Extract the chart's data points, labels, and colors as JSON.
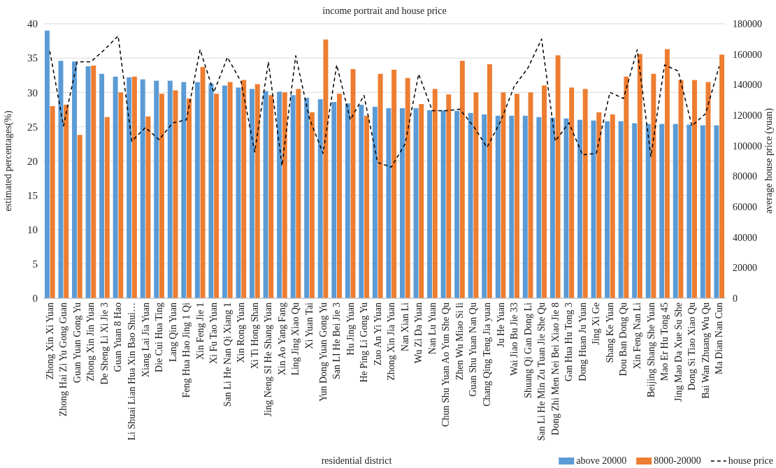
{
  "chart_data": {
    "type": "bar",
    "title": "income portrait and house price",
    "xlabel": "residential district",
    "ylabel": "estimated percentages(%)",
    "y2label": "average house price (yuan)",
    "categories": [
      "Zhong Xin Xi Yuan",
      "Zhong Hai Zi Yu Gong Guan",
      "Guan Yuan Gong Yu",
      "Zhong Xin Jin Yuan",
      "De Sheng Li Xi Jie 3",
      "Guan Yuan 8 Hao",
      "Li Shuai Lian Hua Xin Bao Shui…",
      "Xiang Lai Jia Yuan",
      "Die Cui Hua Ting",
      "Lang Qin Yuan",
      "Feng Hua Hao Jing 1 Qi",
      "Xin Feng Jie 1",
      "Xi Fu Tao Yuan",
      "San Li He Nan Qi Xiang 1",
      "Xin Rong Yuan",
      "Xi Ti Hong Shan",
      "Jing Neng SI He Shang Yuan",
      "Xin Ao Yang Fang",
      "Ling Jing Xiao Qu",
      "Xi Yuan Tai",
      "Yun Dong Yuan Gong Yu",
      "San LI He Bei Jie 3",
      "Hu Jing Yuan",
      "He Ping Li Gong Yu",
      "Zuo An Yi Yuan",
      "Zhong Xin Jia Yuan",
      "Nan Xian Li",
      "Wu Zi Da Yuan",
      "Nan Lu  Yuan",
      "Chun Shu Yuan Ao Yun She Qu",
      "Zhen Wu Miao Si li",
      "Guan Shu Yuan Nan Qu",
      "Chang Qing Teng Jia yuan",
      "Ju He Yuan",
      "Wai Jiao Bu Jie 33",
      "Shuang Qi Gan Dong Li",
      "San Li He Min Zu Tuan Jie She Qu",
      "Dong Zhi Men Nei Bei Xiao Jie 8",
      "Gan Hua Hu Tong 3",
      "Dong Huan Ju Yuan",
      "Jing Xi Ge",
      "Shang Ke Yuan",
      "Dou Ban Dong Qu",
      "Xin Feng Nan Li",
      "Beijing Shang She Yuan",
      "Mao Er Hu Tong 45",
      "Jing Mao Da Xue Su She",
      "Dong Si Tiao Xiao Qu",
      "Bai Wan Zhuang Wu Qu",
      "Ma Dian Nan Cun"
    ],
    "series": [
      {
        "name": "above 20000",
        "color": "#5b9bd5",
        "values": [
          39.0,
          34.6,
          34.5,
          33.8,
          32.7,
          32.3,
          32.2,
          31.9,
          31.7,
          31.7,
          31.5,
          31.5,
          31.3,
          31.0,
          30.7,
          30.5,
          30.2,
          30.1,
          29.6,
          29.2,
          29.0,
          28.6,
          28.4,
          28.2,
          27.9,
          27.7,
          27.7,
          27.7,
          27.4,
          27.4,
          27.3,
          27.0,
          26.8,
          26.6,
          26.6,
          26.6,
          26.4,
          26.3,
          26.2,
          26.0,
          25.9,
          25.8,
          25.8,
          25.5,
          25.4,
          25.4,
          25.4,
          25.3,
          25.2,
          25.2
        ]
      },
      {
        "name": "8000-20000",
        "color": "#ed7d31",
        "values": [
          28.0,
          28.2,
          23.8,
          33.9,
          26.4,
          30.0,
          32.3,
          26.5,
          29.8,
          30.3,
          29.1,
          33.7,
          29.8,
          31.5,
          31.8,
          31.2,
          29.6,
          30.0,
          30.5,
          27.1,
          37.7,
          29.8,
          33.4,
          26.6,
          32.7,
          33.3,
          32.1,
          28.3,
          30.5,
          29.7,
          34.6,
          30.0,
          34.1,
          30.0,
          29.8,
          30.0,
          31.0,
          35.4,
          30.7,
          30.5,
          27.1,
          26.8,
          32.3,
          35.6,
          32.7,
          36.3,
          31.8,
          31.8,
          31.5,
          35.5
        ]
      },
      {
        "name": "house price",
        "type": "line",
        "axis": "y2",
        "color": "#000000",
        "line_style": "dashed",
        "values": [
          162000,
          113000,
          155000,
          155000,
          163000,
          172000,
          103000,
          112000,
          104000,
          115000,
          117000,
          163000,
          135000,
          158000,
          142000,
          96000,
          155000,
          87000,
          159000,
          118000,
          95000,
          153000,
          117000,
          133000,
          89000,
          86000,
          101000,
          147000,
          123000,
          123000,
          124000,
          113000,
          99000,
          116000,
          139000,
          151000,
          170000,
          103000,
          115000,
          94000,
          95000,
          135000,
          131000,
          163000,
          93000,
          153000,
          149000,
          113000,
          121000,
          152000
        ]
      }
    ],
    "ylim": [
      0,
      40
    ],
    "yticks": [
      0,
      5,
      10,
      15,
      20,
      25,
      30,
      35,
      40
    ],
    "y2lim": [
      0,
      180000
    ],
    "y2ticks": [
      0,
      20000,
      40000,
      60000,
      80000,
      100000,
      120000,
      140000,
      160000,
      180000
    ],
    "grid": "y",
    "legend": "bottom right"
  }
}
